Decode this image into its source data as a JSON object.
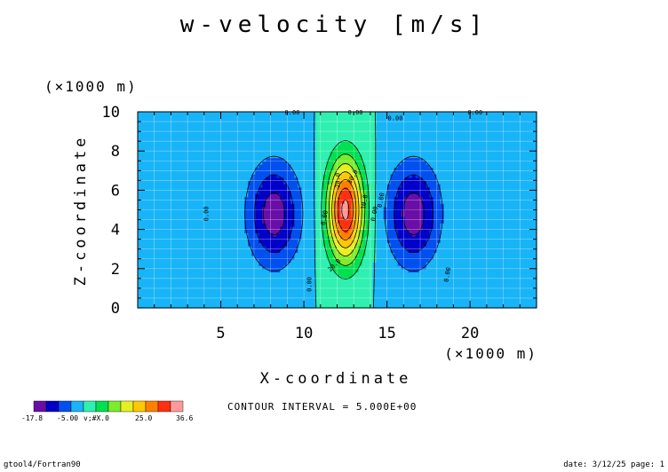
{
  "chart_data": {
    "type": "heatmap",
    "title": "w-velocity [m/s]",
    "xlabel": "X-coordinate",
    "ylabel": "Z-coordinate",
    "x_unit": "(×1000 m)",
    "y_unit": "(×1000 m)",
    "xlim": [
      0,
      24
    ],
    "ylim": [
      0,
      10
    ],
    "x_ticks": [
      "5",
      "10",
      "15",
      "20"
    ],
    "x_tick_values": [
      5,
      10,
      15,
      20
    ],
    "y_ticks": [
      "0",
      "2",
      "4",
      "6",
      "8",
      "10"
    ],
    "y_tick_values": [
      0,
      2,
      4,
      6,
      8,
      10
    ],
    "grid": true,
    "contour_interval": "CONTOUR INTERVAL = 5.000E+00",
    "field_max": 36.6,
    "field_min": -17.8,
    "color_levels": [
      -17.8,
      -15,
      -10,
      -5,
      0,
      5,
      10,
      15,
      20,
      25,
      30,
      35,
      36.6
    ],
    "colors": [
      "#6a0ea8",
      "#0000c8",
      "#0050f0",
      "#18b4f8",
      "#2ff0b0",
      "#00e050",
      "#7cec2c",
      "#e6f020",
      "#ffc800",
      "#ff8000",
      "#ff3010",
      "#ff9a9a"
    ],
    "colorbar_labels": [
      "-17.8",
      "-5.00",
      "25.0",
      "36.6"
    ],
    "colorbar_garbled_label": "v;#X.0",
    "contour_labels": [
      "0.00",
      "0.00",
      "0.00",
      "0.00",
      "0.00",
      "0.00",
      "0.00",
      "0.00",
      "0.00",
      "0.00",
      "20.0",
      "10.0",
      "20.0",
      "30.0"
    ],
    "features": [
      {
        "kind": "updraft",
        "center_x": 12.5,
        "center_z": 5.0,
        "peak": 36.6
      },
      {
        "kind": "downdraft",
        "center_x": 8.2,
        "center_z": 4.8,
        "peak": -17.8
      },
      {
        "kind": "downdraft",
        "center_x": 16.6,
        "center_z": 4.8,
        "peak": -17.8
      }
    ]
  },
  "footer": {
    "left": "gtool4/Fortran90",
    "right": "date: 3/12/25 page: 1"
  }
}
